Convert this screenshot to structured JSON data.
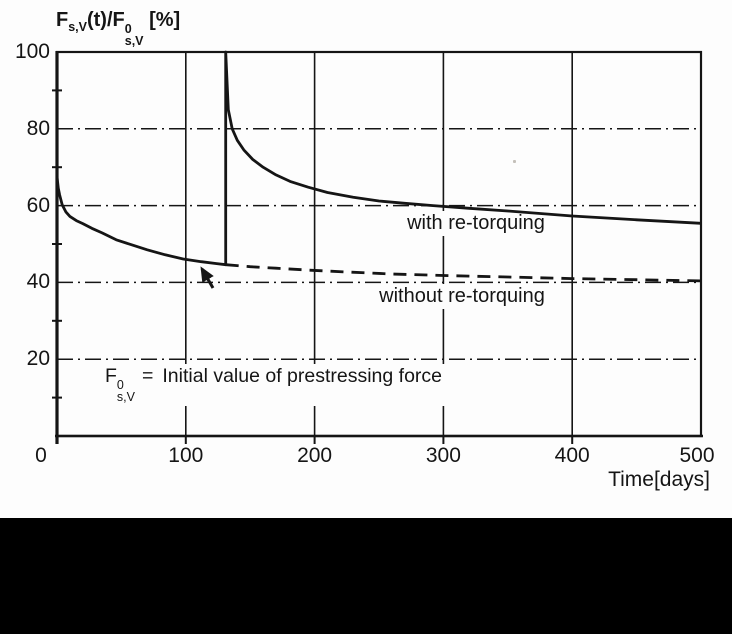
{
  "chart_data": {
    "type": "line",
    "title": "F_s,V(t)/F0_s,V [%]",
    "xlabel": "Time[days]",
    "ylabel": "F_s,V(t)/F0_s,V [%]",
    "xlim": [
      0,
      500
    ],
    "ylim": [
      0,
      100
    ],
    "x_ticks": [
      0,
      100,
      200,
      300,
      400,
      500
    ],
    "y_ticks": [
      0,
      20,
      40,
      60,
      80,
      100
    ],
    "y_minor_ticks": [
      10,
      30,
      50,
      70,
      90
    ],
    "grid": true,
    "retorque_day": 131,
    "series": [
      {
        "name": "with re-torquing",
        "style": "solid",
        "points": [
          [
            0,
            67.5
          ],
          [
            1,
            64.5
          ],
          [
            2,
            62.8
          ],
          [
            4,
            60.2
          ],
          [
            7,
            58.3
          ],
          [
            10,
            57.2
          ],
          [
            15,
            56.1
          ],
          [
            20,
            55.3
          ],
          [
            27,
            54.1
          ],
          [
            35,
            52.9
          ],
          [
            46,
            51.1
          ],
          [
            58,
            49.8
          ],
          [
            70,
            48.5
          ],
          [
            84,
            47.2
          ],
          [
            98,
            46.1
          ],
          [
            112,
            45.4
          ],
          [
            124,
            44.9
          ],
          [
            131,
            44.6
          ],
          [
            131,
            100
          ],
          [
            133,
            85
          ],
          [
            136,
            80
          ],
          [
            140,
            77
          ],
          [
            145,
            74.5
          ],
          [
            152,
            72
          ],
          [
            160,
            70
          ],
          [
            170,
            68
          ],
          [
            181,
            66.3
          ],
          [
            195,
            64.8
          ],
          [
            210,
            63.4
          ],
          [
            230,
            62.2
          ],
          [
            250,
            61.2
          ],
          [
            270,
            60.6
          ],
          [
            292,
            60
          ],
          [
            320,
            59.3
          ],
          [
            350,
            58.6
          ],
          [
            400,
            57.3
          ],
          [
            450,
            56.3
          ],
          [
            500,
            55.4
          ]
        ]
      },
      {
        "name": "without re-torquing",
        "style": "dashed",
        "points": [
          [
            131,
            44.6
          ],
          [
            150,
            44.1
          ],
          [
            170,
            43.7
          ],
          [
            195,
            43.2
          ],
          [
            225,
            42.7
          ],
          [
            260,
            42.2
          ],
          [
            300,
            41.8
          ],
          [
            350,
            41.4
          ],
          [
            400,
            41.0
          ],
          [
            450,
            40.7
          ],
          [
            500,
            40.4
          ]
        ]
      }
    ]
  },
  "title": {
    "base1": "F",
    "sub1": "s,V",
    "middle": "(t)/",
    "base2": "F",
    "sup2": "0",
    "sub2": "s,V",
    "suffix": "[%]"
  },
  "axis": {
    "x_label": "Time[days]"
  },
  "annotations": {
    "upper": "with re-torquing",
    "lower": "without re-torquing"
  },
  "note": {
    "base": "F",
    "sup": "0",
    "sub": "s,V",
    "eq": "=",
    "text": "Initial value of prestressing force"
  },
  "colors": {
    "ink": "#151515",
    "background": "#fdfdfd",
    "bottom_band": "#000000"
  }
}
